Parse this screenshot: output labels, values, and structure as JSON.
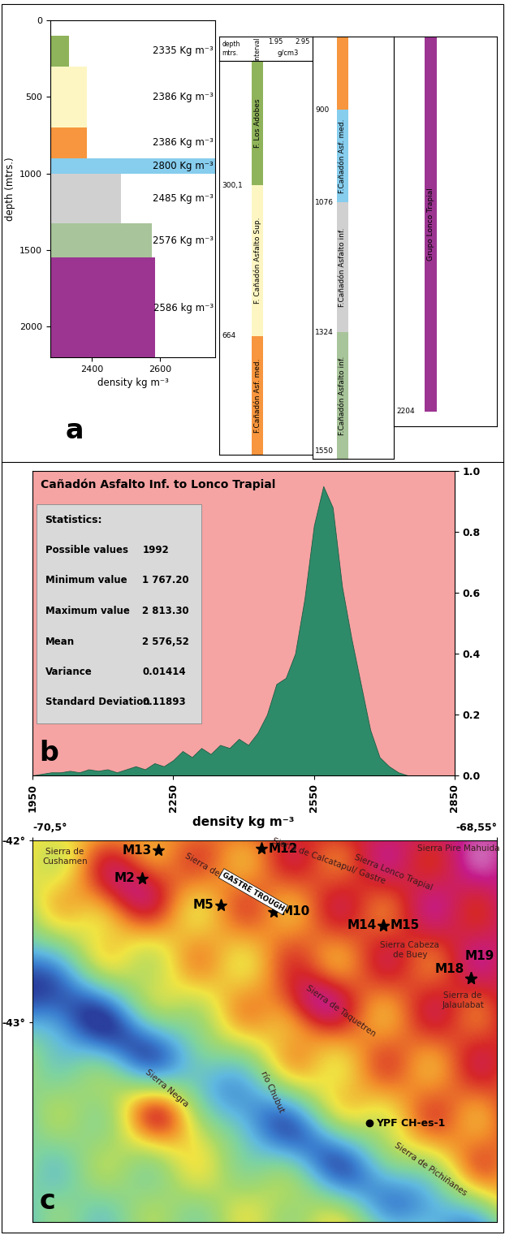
{
  "panel_labels": [
    "a",
    "b",
    "c"
  ],
  "chart_data": [
    {
      "type": "bar",
      "orientation": "horizontal",
      "xlabel": "density kg m⁻³",
      "ylabel": "depth (mtrs.)",
      "layers": [
        {
          "top": 100,
          "bottom": 300,
          "value": 2335,
          "label": "2335 Kg m⁻³",
          "color": "#8fb35a"
        },
        {
          "top": 300,
          "bottom": 700,
          "value": 2386,
          "label": "2386 Kg m⁻³",
          "color": "#fdf6c3"
        },
        {
          "top": 700,
          "bottom": 900,
          "value": 2386,
          "label": "2386 Kg m⁻³",
          "color": "#f7963e"
        },
        {
          "top": 900,
          "bottom": 1000,
          "value": 2800,
          "label": "2800 Kg m⁻³",
          "color": "#87cdee"
        },
        {
          "top": 1000,
          "bottom": 1324,
          "value": 2485,
          "label": "2485 Kg m⁻³",
          "color": "#d0d0d0"
        },
        {
          "top": 1324,
          "bottom": 1550,
          "value": 2576,
          "label": "2576 Kg m⁻³",
          "color": "#a8c49a"
        },
        {
          "top": 1550,
          "bottom": 2204,
          "value": 2586,
          "label": "2586 kg m⁻³",
          "color": "#9c3592"
        }
      ],
      "xlim": [
        2280,
        2760
      ],
      "xticks": [
        2400,
        2600
      ],
      "ylim": [
        2200,
        0
      ],
      "yticks": [
        0,
        500,
        1000,
        1500,
        2000
      ]
    },
    {
      "type": "area",
      "title": "Cañadón Asfalto Inf. to Lonco Trapial",
      "xlabel": "density kg m⁻³",
      "color": "#2e8b6a",
      "x": [
        1950,
        1970,
        1990,
        2010,
        2030,
        2050,
        2070,
        2090,
        2110,
        2130,
        2150,
        2170,
        2190,
        2210,
        2230,
        2250,
        2270,
        2290,
        2310,
        2330,
        2350,
        2370,
        2390,
        2410,
        2430,
        2450,
        2470,
        2490,
        2510,
        2530,
        2550,
        2570,
        2590,
        2610,
        2630,
        2650,
        2670,
        2690,
        2710,
        2730,
        2750,
        2770,
        2790,
        2810,
        2830,
        2850
      ],
      "values": [
        0.0,
        0.005,
        0.01,
        0.01,
        0.015,
        0.01,
        0.02,
        0.015,
        0.02,
        0.01,
        0.02,
        0.03,
        0.02,
        0.04,
        0.03,
        0.05,
        0.08,
        0.06,
        0.09,
        0.07,
        0.1,
        0.09,
        0.12,
        0.1,
        0.14,
        0.2,
        0.3,
        0.32,
        0.4,
        0.58,
        0.82,
        0.95,
        0.88,
        0.62,
        0.45,
        0.3,
        0.15,
        0.06,
        0.03,
        0.01,
        0.0,
        0.0,
        0.0,
        0.0,
        0.0,
        0.0
      ],
      "xlim": [
        1950,
        2850
      ],
      "xticks": [
        1950,
        2250,
        2550,
        2850
      ],
      "ylim": [
        0,
        1.0
      ],
      "yticks": [
        {
          "value": 0,
          "label": "0.0"
        },
        {
          "value": 0.2,
          "label": "0.2"
        },
        {
          "value": 0.4,
          "label": "0.4"
        },
        {
          "value": 0.6,
          "label": "0.6"
        },
        {
          "value": 0.8,
          "label": "0.8"
        },
        {
          "value": 1.0,
          "label": "1.0"
        }
      ],
      "statistics": {
        "title": "Statistics:",
        "rows": [
          {
            "name": "Possible values",
            "value": "1992"
          },
          {
            "name": "Minimum value",
            "value": "1 767.20"
          },
          {
            "name": "Maximum value",
            "value": "2 813.30"
          },
          {
            "name": "Mean",
            "value": "2 576,52"
          },
          {
            "name": "Variance",
            "value": "0.01414"
          },
          {
            "name": "Standard Deviation",
            "value": "0.11893"
          }
        ]
      }
    }
  ],
  "well_log": {
    "header": {
      "depth": "depth\nmtrs.",
      "interval": "interval",
      "scale": [
        1.95,
        2.95
      ],
      "unit": "g/cm3"
    },
    "tracks": [
      {
        "range": [
          0,
          950
        ],
        "depths": [
          {
            "value": 300.1,
            "label": "300,1"
          },
          {
            "value": 664,
            "label": "664"
          }
        ],
        "intervals": [
          {
            "top": 0,
            "bottom": 300.1,
            "name": "F. Los Adobes",
            "color": "#8fb35a"
          },
          {
            "top": 300.1,
            "bottom": 664,
            "name": "F. Cañadón Asfalto Sup.",
            "color": "#fdf6c3"
          },
          {
            "top": 664,
            "bottom": 950,
            "name": "F.Cañadón Asf. med.",
            "color": "#f7963e"
          }
        ]
      },
      {
        "range": [
          760,
          1565
        ],
        "depths": [
          {
            "value": 900,
            "label": "900"
          },
          {
            "value": 1076,
            "label": "1076"
          },
          {
            "value": 1324,
            "label": "1324"
          },
          {
            "value": 1550,
            "label": "1550"
          }
        ],
        "intervals": [
          {
            "top": 760,
            "bottom": 900,
            "color": "#f7963e"
          },
          {
            "top": 900,
            "bottom": 1076,
            "name": "F.Cañadón Asf. med.",
            "color": "#87cdee"
          },
          {
            "top": 1076,
            "bottom": 1324,
            "name": "F.Cañadón Asfalto inf.",
            "color": "#d0d0d0"
          },
          {
            "top": 1324,
            "bottom": 1565,
            "name": "F.Cañadón Asfalto inf.",
            "color": "#a8c49a"
          }
        ]
      },
      {
        "range": [
          1550,
          2230
        ],
        "depths": [
          {
            "value": 2204,
            "label": "2204"
          }
        ],
        "intervals": [
          {
            "top": 1550,
            "bottom": 2204,
            "name": "Grupo Lonco Trapial",
            "color": "#9c3592"
          }
        ]
      }
    ]
  },
  "map": {
    "xlim": [
      -70.5,
      -68.55
    ],
    "ylim": [
      -44.1,
      -42
    ],
    "xticks": [
      {
        "value": -70.5,
        "label": "-70,5°"
      },
      {
        "value": -68.55,
        "label": "-68,55°"
      }
    ],
    "yticks": [
      {
        "value": -42,
        "label": "-42°"
      },
      {
        "value": -43,
        "label": "-43°"
      }
    ],
    "sites": [
      {
        "label": "M13",
        "lon": -69.972,
        "lat": -42.054,
        "side": "left"
      },
      {
        "label": "M12",
        "lon": -69.539,
        "lat": -42.045,
        "side": "right"
      },
      {
        "label": "M2",
        "lon": -70.04,
        "lat": -42.21,
        "side": "left"
      },
      {
        "label": "M5",
        "lon": -69.709,
        "lat": -42.357,
        "side": "left"
      },
      {
        "label": "M10",
        "lon": -69.487,
        "lat": -42.393,
        "side": "right"
      },
      {
        "label": "M14",
        "lon": -69.027,
        "lat": -42.469,
        "side": "left"
      },
      {
        "label": "M15",
        "lon": -69.027,
        "lat": -42.469,
        "side": "right"
      },
      {
        "label": "M19",
        "lon": -68.659,
        "lat": -42.76,
        "side": "up"
      },
      {
        "label": "M18",
        "lon": -68.659,
        "lat": -42.76,
        "side": "upleft"
      }
    ],
    "well": {
      "label": "YPF CH-es-1",
      "lon": -69.085,
      "lat": -43.555
    },
    "trough": {
      "name": "GASTRE TROUGH",
      "lon": -69.573,
      "lat": -42.282
    },
    "places": [
      {
        "name": "Sierra de\nCushamen",
        "lon": -70.364,
        "lat": -42.089
      },
      {
        "name": "Sierra del Medio",
        "lon": -69.733,
        "lat": -42.179
      },
      {
        "name": "Sierra de Calcatapul/ Gastre",
        "lon": -69.256,
        "lat": -42.112
      },
      {
        "name": "Sierra Lonco Trapial",
        "lon": -68.983,
        "lat": -42.179
      },
      {
        "name": "Sierra Pire Mahuida",
        "lon": -68.71,
        "lat": -42.045
      },
      {
        "name": "Sierra Cabeza\nde Buey",
        "lon": -68.915,
        "lat": -42.603
      },
      {
        "name": "Sierra de\nJalaulabat",
        "lon": -68.693,
        "lat": -42.88
      },
      {
        "name": "Sierra de Taquetren",
        "lon": -69.204,
        "lat": -42.938
      },
      {
        "name": "río Chubut",
        "lon": -69.494,
        "lat": -43.385
      },
      {
        "name": "Sierra Negra",
        "lon": -69.937,
        "lat": -43.363
      },
      {
        "name": "Sierra de Pichiñanes",
        "lon": -68.829,
        "lat": -43.81
      }
    ]
  }
}
